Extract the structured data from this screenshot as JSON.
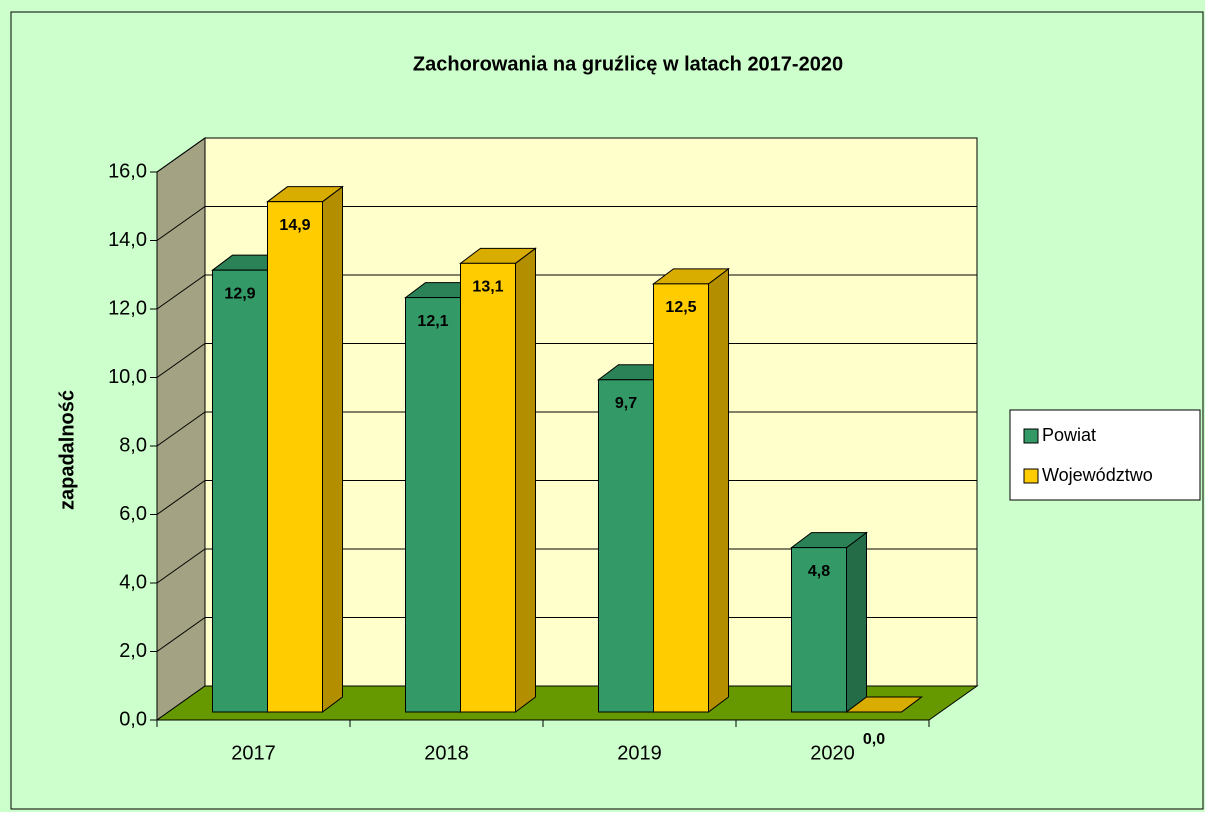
{
  "chart_data": {
    "type": "bar3d",
    "title": "Zachorowania na gruźlicę w latach 2017-2020",
    "ylabel": "zapadalność",
    "categories": [
      "2017",
      "2018",
      "2019",
      "2020"
    ],
    "series": [
      {
        "name": "Powiat",
        "color": "#339966",
        "values": [
          12.9,
          12.1,
          9.7,
          4.8
        ],
        "value_labels": [
          "12,9",
          "12,1",
          "9,7",
          "4,8"
        ]
      },
      {
        "name": "Województwo",
        "color": "#ffcc00",
        "values": [
          14.9,
          13.1,
          12.5,
          0.0
        ],
        "value_labels": [
          "14,9",
          "13,1",
          "12,5",
          "0,0"
        ]
      }
    ],
    "ylim": [
      0,
      16
    ],
    "yticks": [
      {
        "value": 0,
        "label": "0,0"
      },
      {
        "value": 2,
        "label": "2,0"
      },
      {
        "value": 4,
        "label": "4,0"
      },
      {
        "value": 6,
        "label": "6,0"
      },
      {
        "value": 8,
        "label": "8,0"
      },
      {
        "value": 10,
        "label": "10,0"
      },
      {
        "value": 12,
        "label": "12,0"
      },
      {
        "value": 14,
        "label": "14,0"
      },
      {
        "value": 16,
        "label": "16,0"
      }
    ],
    "grid": true,
    "legend": "right"
  }
}
